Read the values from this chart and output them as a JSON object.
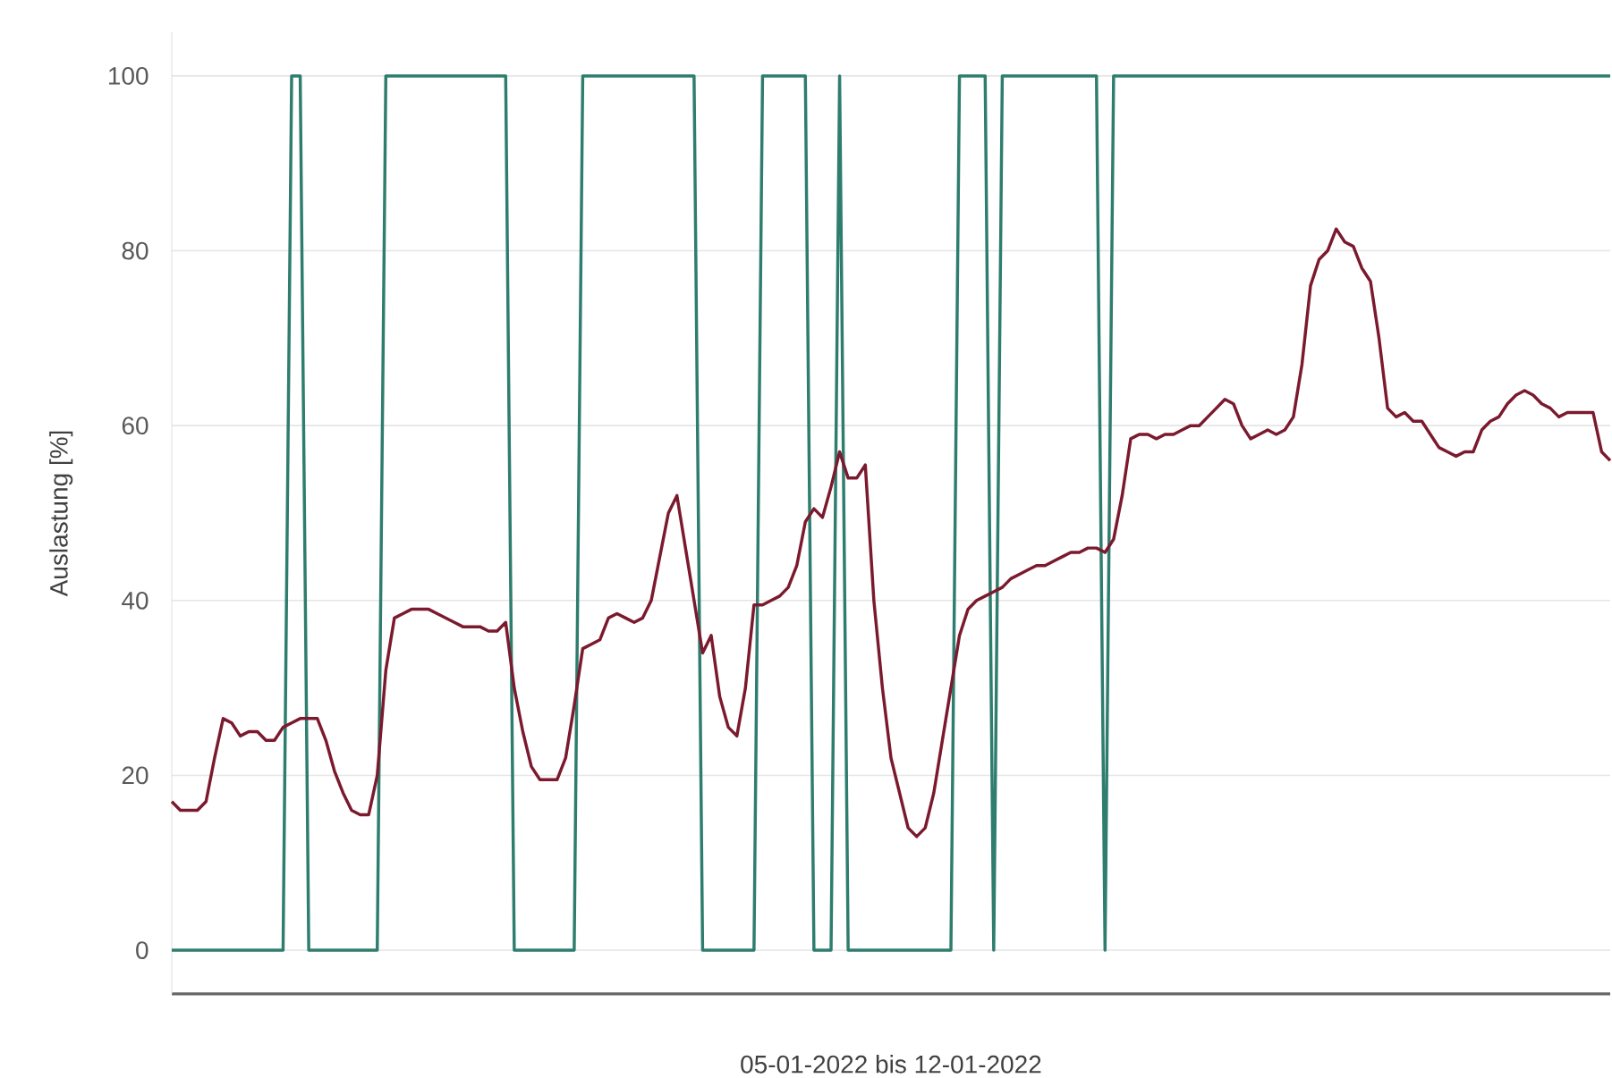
{
  "chart_data": {
    "type": "line",
    "xlabel": "05-01-2022 bis 12-01-2022",
    "ylabel": "Auslastung [%]",
    "categories": [
      null,
      null,
      null,
      null,
      null,
      null,
      null,
      null,
      null,
      null,
      null,
      null,
      null,
      null,
      null,
      null,
      null,
      null,
      null,
      null,
      null,
      null,
      null,
      null,
      null,
      null,
      null,
      null,
      null,
      null,
      null,
      null,
      null,
      null,
      null,
      null,
      null,
      null,
      null,
      null,
      null,
      null,
      null,
      null,
      null,
      null,
      null,
      null,
      null,
      null,
      null,
      null,
      null,
      null,
      null,
      null,
      null,
      null,
      null,
      null,
      null,
      null,
      null,
      null,
      null,
      null,
      null,
      null,
      null,
      null,
      null,
      null,
      null,
      null,
      null,
      null,
      null,
      null,
      null,
      null,
      null,
      null,
      null,
      null,
      null,
      null,
      null,
      null,
      null,
      null,
      null,
      null,
      null,
      null,
      null,
      null,
      null,
      null,
      null,
      null,
      null,
      null,
      null,
      null,
      null,
      null,
      null,
      null,
      null,
      null,
      null,
      null,
      null,
      null,
      null,
      null,
      null,
      null,
      null,
      null,
      null,
      null,
      null,
      null,
      null,
      null,
      null,
      null,
      null,
      null,
      null,
      null,
      null,
      null,
      null,
      null,
      null,
      null,
      null,
      null,
      null,
      null,
      null,
      null,
      null,
      null,
      null,
      null,
      null,
      null,
      null,
      null,
      null,
      null,
      null,
      null,
      null,
      null,
      null,
      null,
      null,
      null,
      null,
      null,
      null,
      null,
      null,
      null,
      null
    ],
    "series": [
      {
        "color": "#2e7d6e",
        "values": [
          0,
          0,
          0,
          0,
          0,
          0,
          0,
          0,
          0,
          0,
          0,
          0,
          0,
          0,
          100,
          100,
          0,
          0,
          0,
          0,
          0,
          0,
          0,
          0,
          0,
          100,
          100,
          100,
          100,
          100,
          100,
          100,
          100,
          100,
          100,
          100,
          100,
          100,
          100,
          100,
          0,
          0,
          0,
          0,
          0,
          0,
          0,
          0,
          100,
          100,
          100,
          100,
          100,
          100,
          100,
          100,
          100,
          100,
          100,
          100,
          100,
          100,
          0,
          0,
          0,
          0,
          0,
          0,
          0,
          100,
          100,
          100,
          100,
          100,
          100,
          0,
          0,
          0,
          100,
          0,
          0,
          0,
          0,
          0,
          0,
          0,
          0,
          0,
          0,
          0,
          0,
          0,
          100,
          100,
          100,
          100,
          0,
          100,
          100,
          100,
          100,
          100,
          100,
          100,
          100,
          100,
          100,
          100,
          100,
          0,
          100,
          100,
          100,
          100,
          100,
          100,
          100,
          100,
          100,
          100,
          100,
          100,
          100,
          100,
          100,
          100,
          100,
          100,
          100,
          100,
          100,
          100,
          100,
          100,
          100,
          100,
          100,
          100,
          100,
          100,
          100,
          100,
          100,
          100,
          100,
          100,
          100,
          100,
          100,
          100,
          100,
          100,
          100,
          100,
          100,
          100,
          100,
          100,
          100,
          100,
          100,
          100,
          100,
          100,
          100,
          100,
          100,
          100,
          100
        ]
      },
      {
        "color": "#7b1a2e",
        "values": [
          17,
          16,
          16,
          16,
          17,
          22,
          26.5,
          26,
          24.5,
          25,
          25,
          24,
          24,
          25.5,
          26,
          26.5,
          26.5,
          26.5,
          24,
          20.5,
          18,
          16,
          15.5,
          15.5,
          20,
          32,
          38,
          38.5,
          39,
          39,
          39,
          38.5,
          38,
          37.5,
          37,
          37,
          37,
          36.5,
          36.5,
          37.5,
          30,
          25,
          21,
          19.5,
          19.5,
          19.5,
          22,
          28,
          34.5,
          35,
          35.5,
          38,
          38.5,
          38,
          37.5,
          38,
          40,
          45,
          50,
          52,
          46,
          40,
          34,
          36,
          29,
          25.5,
          24.5,
          30,
          39.5,
          39.5,
          40,
          40.5,
          41.5,
          44,
          49,
          50.5,
          49.5,
          53,
          57,
          54,
          54,
          55.5,
          40,
          30,
          22,
          18,
          14,
          13,
          14,
          18,
          24,
          30,
          36,
          39,
          40,
          40.5,
          41,
          41.5,
          42.5,
          43,
          43.5,
          44,
          44,
          44.5,
          45,
          45.5,
          45.5,
          46,
          46,
          45.5,
          47,
          52,
          58.5,
          59,
          59,
          58.5,
          59,
          59,
          59.5,
          60,
          60,
          61,
          62,
          63,
          62.5,
          60,
          58.5,
          59,
          59.5,
          59,
          59.5,
          61,
          67,
          76,
          79,
          80,
          82.5,
          81,
          80.5,
          78,
          76.5,
          70,
          62,
          61,
          61.5,
          60.5,
          60.5,
          59,
          57.5,
          57,
          56.5,
          57,
          57,
          59.5,
          60.5,
          61,
          62.5,
          63.5,
          64,
          63.5,
          62.5,
          62,
          61,
          61.5,
          61.5,
          61.5,
          61.5,
          57,
          56
        ]
      }
    ],
    "ylim": [
      -5,
      105
    ],
    "yticks": [
      0,
      20,
      40,
      60,
      80,
      100
    ],
    "grid": "y"
  }
}
